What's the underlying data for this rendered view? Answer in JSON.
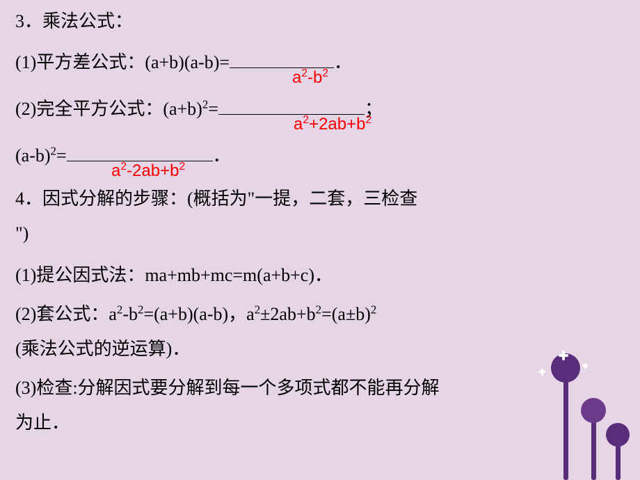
{
  "background_color": "#e6d5e6",
  "base_font_size": 26,
  "text_color": "#000000",
  "answer_color": "#ff0000",
  "answer_font_size": 24,
  "lines": {
    "l1": "3．乘法公式：",
    "l2_pre": "(1)平方差公式：(a+b)(a-b)=",
    "l2_post": "．",
    "ans1": "a²-b²",
    "l3_pre": "(2)完全平方公式：(a+b)²=",
    "l3_post": "；",
    "ans2": "a²+2ab+b²",
    "l4_pre": "(a-b)²=",
    "l4_post": "．",
    "ans3": "a²-2ab+b²",
    "l5": "4．因式分解的步骤：(概括为\"一提，二套，三检查",
    "l6": "\")",
    "l7": "(1)提公因式法：ma+mb+mc=m(a+b+c)．",
    "l8": "(2)套公式：a²-b²=(a+b)(a-b)，a²±2ab+b²=(a±b)²",
    "l9": "(乘法公式的逆运算)．",
    "l10": "(3)检查:分解因式要分解到每一个多项式都不能再分解",
    "l11": "为止．"
  },
  "blanks": {
    "b1_width": 150,
    "b2_width": 210,
    "b3_width": 210
  },
  "decoration": {
    "stem_color": "#5a2d7a",
    "ball_colors": [
      "#5a2d7a",
      "#6b3a8a",
      "#4a9b7a"
    ],
    "spark_color": "#ffffff"
  }
}
